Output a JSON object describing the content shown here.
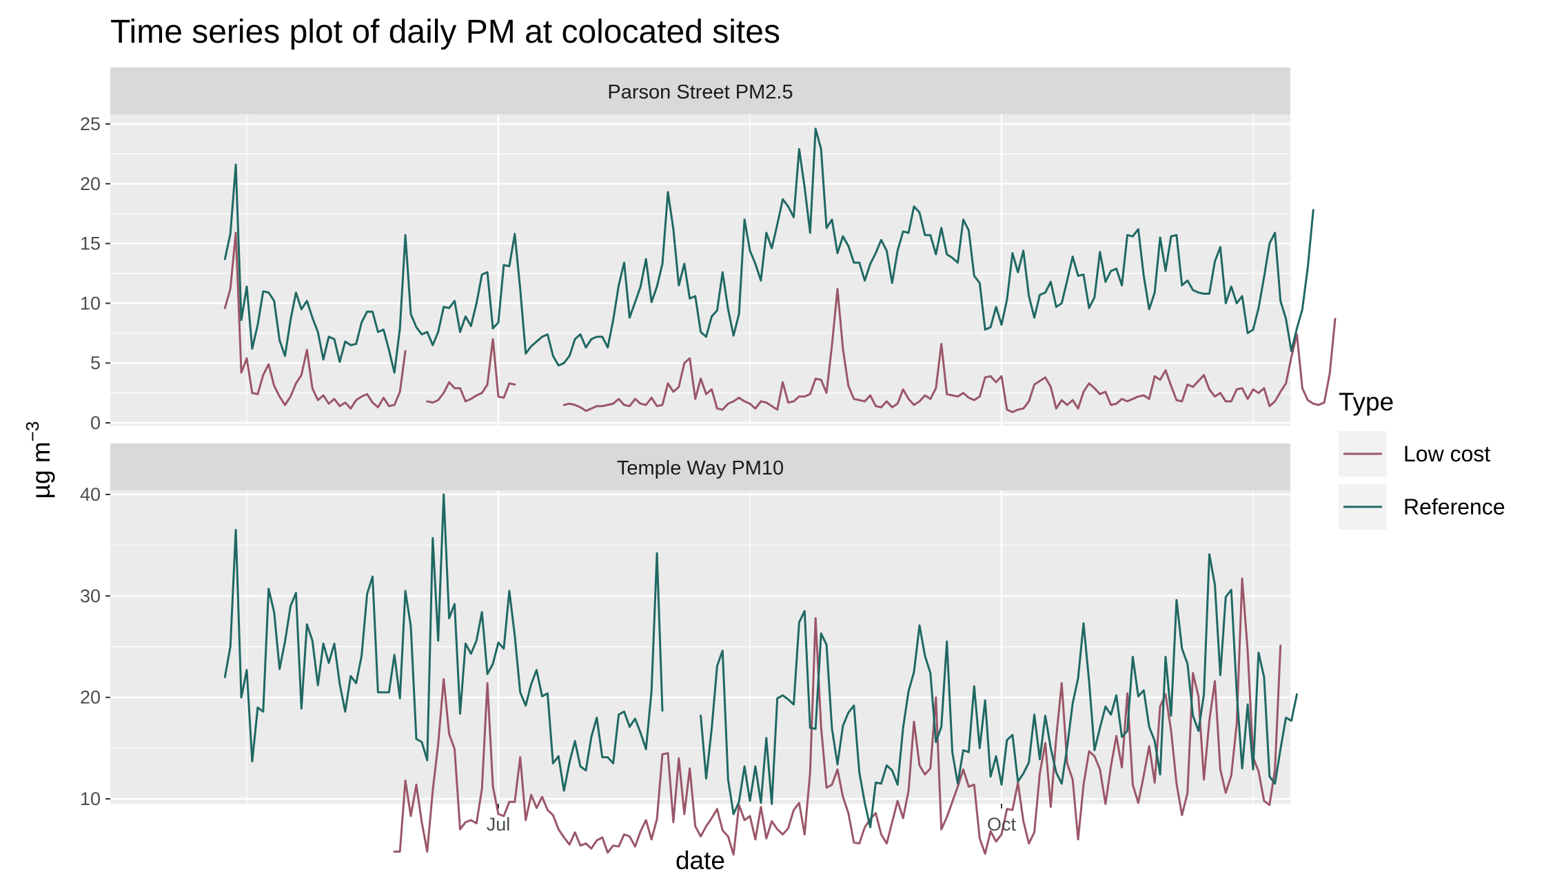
{
  "chart_data": {
    "type": "line",
    "title": "Time series plot of daily PM at colocated sites",
    "xlabel": "date",
    "ylabel": "µg m",
    "ylabel_superscript": "−3",
    "x_start": "2022-05-12",
    "x_ticks": [
      {
        "label": "Jul",
        "date": "2022-07-01"
      },
      {
        "label": "Oct",
        "date": "2022-10-01"
      }
    ],
    "legend": {
      "title": "Type",
      "position": "right",
      "entries": [
        {
          "name": "Low cost",
          "color": "#9A5667"
        },
        {
          "name": "Reference",
          "color": "#1F6863"
        }
      ]
    },
    "panels": [
      {
        "strip": "Parson Street PM2.5",
        "y_ticks": [
          0,
          5,
          10,
          15,
          20,
          25
        ],
        "ylim": [
          -0.5,
          26
        ],
        "series": [
          {
            "name": "Low cost",
            "values": [
              9.6,
              11.2,
              15.9,
              4.2,
              5.4,
              2.5,
              2.4,
              4.0,
              4.9,
              3.1,
              2.2,
              1.5,
              2.2,
              3.3,
              4.0,
              6.1,
              2.9,
              1.9,
              2.3,
              1.6,
              2.0,
              1.4,
              1.7,
              1.2,
              1.9,
              2.2,
              2.4,
              1.7,
              1.3,
              2.1,
              1.4,
              1.5,
              2.6,
              6.0,
              null,
              null,
              null,
              1.8,
              1.7,
              1.9,
              2.5,
              3.4,
              2.9,
              2.9,
              1.8,
              2.0,
              2.3,
              2.5,
              3.2,
              7.0,
              2.2,
              2.1,
              3.3,
              3.2,
              null,
              null,
              null,
              null,
              null,
              null,
              null,
              null,
              1.5,
              1.6,
              1.5,
              1.3,
              1.0,
              1.2,
              1.4,
              1.4,
              1.5,
              1.6,
              2.0,
              1.5,
              1.4,
              2.0,
              1.6,
              1.5,
              2.1,
              1.4,
              1.5,
              3.3,
              2.6,
              3.0,
              5.0,
              5.4,
              2.0,
              3.7,
              2.4,
              2.8,
              1.2,
              1.1,
              1.6,
              1.8,
              2.1,
              1.8,
              1.6,
              1.2,
              1.8,
              1.7,
              1.4,
              1.1,
              3.4,
              1.7,
              1.8,
              2.2,
              2.2,
              2.4,
              3.7,
              3.6,
              2.5,
              6.5,
              11.2,
              6.2,
              3.1,
              2.0,
              1.9,
              1.8,
              2.3,
              1.4,
              1.3,
              1.8,
              1.3,
              1.6,
              2.8,
              2.0,
              1.5,
              1.8,
              2.3,
              2.0,
              2.9,
              6.6,
              2.4,
              2.3,
              2.2,
              2.5,
              2.1,
              1.9,
              2.2,
              3.8,
              3.9,
              3.4,
              3.9,
              1.1,
              0.9,
              1.1,
              1.2,
              1.8,
              3.2,
              3.5,
              3.8,
              3.0,
              1.2,
              1.9,
              1.5,
              1.9,
              1.2,
              2.6,
              3.3,
              2.9,
              2.4,
              2.6,
              1.5,
              1.6,
              2.0,
              1.8,
              2.0,
              2.2,
              2.3,
              2.0,
              3.9,
              3.6,
              4.4,
              3.1,
              1.9,
              1.8,
              3.2,
              3.0,
              3.5,
              4.0,
              2.8,
              2.2,
              2.5,
              1.8,
              1.8,
              2.8,
              2.9,
              2.0,
              2.8,
              2.5,
              2.9,
              1.4,
              1.8,
              2.6,
              3.3,
              5.5,
              7.4,
              2.9,
              1.9,
              1.6,
              1.5,
              1.7,
              4.1,
              8.7
            ]
          },
          {
            "name": "Reference",
            "values": [
              13.7,
              15.8,
              21.6,
              8.6,
              11.4,
              6.2,
              8.2,
              11.0,
              10.9,
              10.2,
              6.9,
              5.6,
              8.6,
              10.9,
              9.5,
              10.2,
              8.8,
              7.6,
              5.3,
              7.2,
              7.0,
              5.1,
              6.8,
              6.5,
              6.6,
              8.4,
              9.3,
              9.3,
              7.6,
              7.8,
              6.1,
              4.2,
              7.9,
              15.7,
              9.1,
              8.0,
              7.4,
              7.6,
              6.5,
              7.6,
              9.7,
              9.6,
              10.2,
              7.6,
              8.9,
              8.1,
              10.0,
              12.4,
              12.6,
              7.9,
              8.4,
              13.2,
              13.1,
              15.8,
              11.2,
              5.8,
              6.4,
              6.8,
              7.2,
              7.4,
              5.6,
              4.8,
              5.0,
              5.6,
              7.0,
              7.4,
              6.3,
              7.0,
              7.2,
              7.2,
              6.3,
              8.6,
              11.5,
              13.4,
              8.8,
              10.1,
              11.4,
              13.7,
              10.1,
              11.4,
              13.3,
              19.3,
              16.2,
              11.5,
              13.3,
              10.4,
              10.6,
              7.6,
              7.2,
              8.9,
              9.4,
              12.6,
              9.5,
              7.3,
              9.1,
              17.0,
              14.4,
              13.3,
              11.9,
              15.9,
              14.6,
              16.6,
              18.7,
              18.1,
              17.2,
              22.9,
              19.7,
              15.9,
              24.6,
              22.9,
              16.3,
              17.0,
              14.2,
              15.6,
              14.8,
              13.4,
              13.4,
              11.9,
              13.3,
              14.2,
              15.3,
              14.4,
              11.7,
              14.4,
              16.0,
              15.9,
              18.1,
              17.6,
              15.7,
              15.7,
              14.1,
              16.3,
              14.1,
              13.8,
              13.4,
              17.0,
              16.1,
              12.3,
              11.7,
              7.8,
              8.0,
              9.7,
              8.2,
              10.3,
              14.2,
              12.6,
              14.4,
              10.6,
              8.8,
              10.7,
              10.9,
              11.8,
              9.7,
              10.0,
              11.9,
              13.9,
              12.3,
              12.4,
              9.6,
              10.5,
              14.3,
              11.8,
              12.7,
              12.9,
              11.5,
              15.7,
              15.6,
              16.2,
              12.3,
              9.5,
              10.9,
              15.5,
              12.7,
              15.6,
              15.7,
              11.5,
              11.9,
              11.1,
              10.9,
              10.8,
              10.8,
              13.5,
              14.7,
              10.0,
              11.4,
              10.0,
              10.6,
              7.5,
              7.8,
              9.6,
              12.2,
              15.0,
              15.9,
              10.2,
              8.7,
              6.0,
              7.9,
              9.5,
              13.0,
              17.8
            ]
          }
        ]
      },
      {
        "strip": "Temple Way PM10",
        "y_ticks": [
          10,
          20,
          30,
          40
        ],
        "ylim": [
          3,
          42
        ],
        "series": [
          {
            "name": "Low cost",
            "values": [
              null,
              null,
              null,
              null,
              null,
              null,
              null,
              null,
              null,
              null,
              null,
              null,
              null,
              null,
              null,
              null,
              null,
              null,
              null,
              null,
              null,
              null,
              null,
              null,
              null,
              null,
              null,
              null,
              null,
              null,
              null,
              4.8,
              4.8,
              11.8,
              8.3,
              11.4,
              7.7,
              4.8,
              10.8,
              15.4,
              21.8,
              16.4,
              14.9,
              7.0,
              7.7,
              7.9,
              7.6,
              11.0,
              21.4,
              11.2,
              8.5,
              8.3,
              9.7,
              9.7,
              14.1,
              7.9,
              10.4,
              9.1,
              10.2,
              8.9,
              8.4,
              7.0,
              6.2,
              5.5,
              6.7,
              5.4,
              5.6,
              5.1,
              5.9,
              6.2,
              4.7,
              5.4,
              5.3,
              6.5,
              6.3,
              5.3,
              6.8,
              7.9,
              6.0,
              8.0,
              14.4,
              14.5,
              7.7,
              14.0,
              8.5,
              13.0,
              7.3,
              6.3,
              7.3,
              8.1,
              9.0,
              6.9,
              6.3,
              4.5,
              9.4,
              7.9,
              8.3,
              6.0,
              9.2,
              6.1,
              7.8,
              7.0,
              6.5,
              7.1,
              8.9,
              9.6,
              6.5,
              12.6,
              27.8,
              17.1,
              11.1,
              11.4,
              12.9,
              10.2,
              8.6,
              5.7,
              5.6,
              7.2,
              8.0,
              8.6,
              6.5,
              5.6,
              7.7,
              9.8,
              8.1,
              10.8,
              17.6,
              13.3,
              12.4,
              13.0,
              20.0,
              7.0,
              8.2,
              9.7,
              11.2,
              12.9,
              11.2,
              11.4,
              6.1,
              4.6,
              6.8,
              5.8,
              6.5,
              9.0,
              8.9,
              11.6,
              7.8,
              5.6,
              6.7,
              12.5,
              15.5,
              9.2,
              16.0,
              21.4,
              13.5,
              11.9,
              6.0,
              11.4,
              14.7,
              14.2,
              12.9,
              9.5,
              13.2,
              16.2,
              13.1,
              20.4,
              11.4,
              9.6,
              12.3,
              15.2,
              11.6,
              19.1,
              20.3,
              16.7,
              11.5,
              8.4,
              10.6,
              22.4,
              20.1,
              11.9,
              17.7,
              21.6,
              12.9,
              10.6,
              12.3,
              17.4,
              31.7,
              24.6,
              14.1,
              12.7,
              9.8,
              9.4,
              12.9,
              25.1
            ]
          },
          {
            "name": "Reference",
            "values": [
              22.0,
              25.0,
              36.5,
              20.0,
              22.7,
              13.7,
              19.0,
              18.6,
              30.7,
              28.4,
              22.8,
              25.5,
              29.0,
              30.3,
              18.9,
              27.2,
              25.6,
              21.2,
              25.3,
              23.4,
              25.3,
              21.3,
              18.6,
              22.1,
              21.4,
              24.1,
              30.2,
              31.9,
              20.5,
              20.5,
              20.5,
              24.2,
              19.9,
              30.5,
              27.0,
              15.9,
              15.6,
              13.8,
              35.7,
              25.6,
              40.0,
              27.8,
              29.2,
              18.4,
              25.3,
              24.3,
              25.6,
              28.4,
              22.3,
              23.3,
              25.4,
              24.8,
              30.5,
              26.1,
              20.5,
              19.2,
              21.3,
              22.7,
              20.1,
              20.4,
              13.5,
              14.2,
              10.8,
              13.6,
              15.7,
              13.2,
              12.8,
              16.1,
              18.0,
              14.1,
              14.1,
              13.5,
              18.3,
              18.6,
              17.1,
              17.9,
              16.5,
              14.9,
              20.6,
              34.2,
              18.7,
              null,
              null,
              null,
              null,
              null,
              null,
              18.2,
              12.0,
              16.9,
              23.1,
              24.6,
              11.9,
              8.5,
              9.7,
              13.2,
              9.8,
              13.2,
              9.6,
              16.0,
              9.5,
              19.9,
              20.2,
              19.8,
              19.3,
              27.4,
              28.5,
              17.0,
              16.9,
              26.3,
              25.2,
              16.9,
              13.4,
              17.2,
              18.5,
              19.2,
              12.6,
              9.6,
              7.2,
              11.6,
              11.5,
              13.3,
              12.8,
              11.4,
              17.0,
              20.6,
              22.5,
              27.1,
              24.1,
              22.4,
              15.6,
              17.1,
              25.5,
              14.6,
              11.5,
              14.8,
              14.6,
              21.1,
              15.0,
              19.7,
              12.2,
              14.2,
              11.4,
              15.8,
              16.3,
              11.7,
              12.5,
              13.6,
              18.3,
              13.9,
              18.2,
              15.0,
              12.6,
              11.5,
              15.1,
              19.4,
              21.9,
              27.3,
              21.6,
              14.8,
              17.0,
              19.1,
              18.3,
              20.2,
              16.1,
              16.7,
              24.0,
              20.1,
              20.7,
              17.1,
              15.7,
              12.4,
              24.0,
              18.2,
              29.6,
              24.8,
              23.3,
              18.2,
              16.7,
              20.3,
              34.1,
              31.1,
              22.2,
              29.9,
              30.6,
              20.5,
              13.0,
              19.3,
              12.9,
              24.4,
              22.0,
              12.2,
              11.5,
              14.9,
              18.0,
              17.7,
              20.3
            ]
          }
        ]
      }
    ]
  }
}
